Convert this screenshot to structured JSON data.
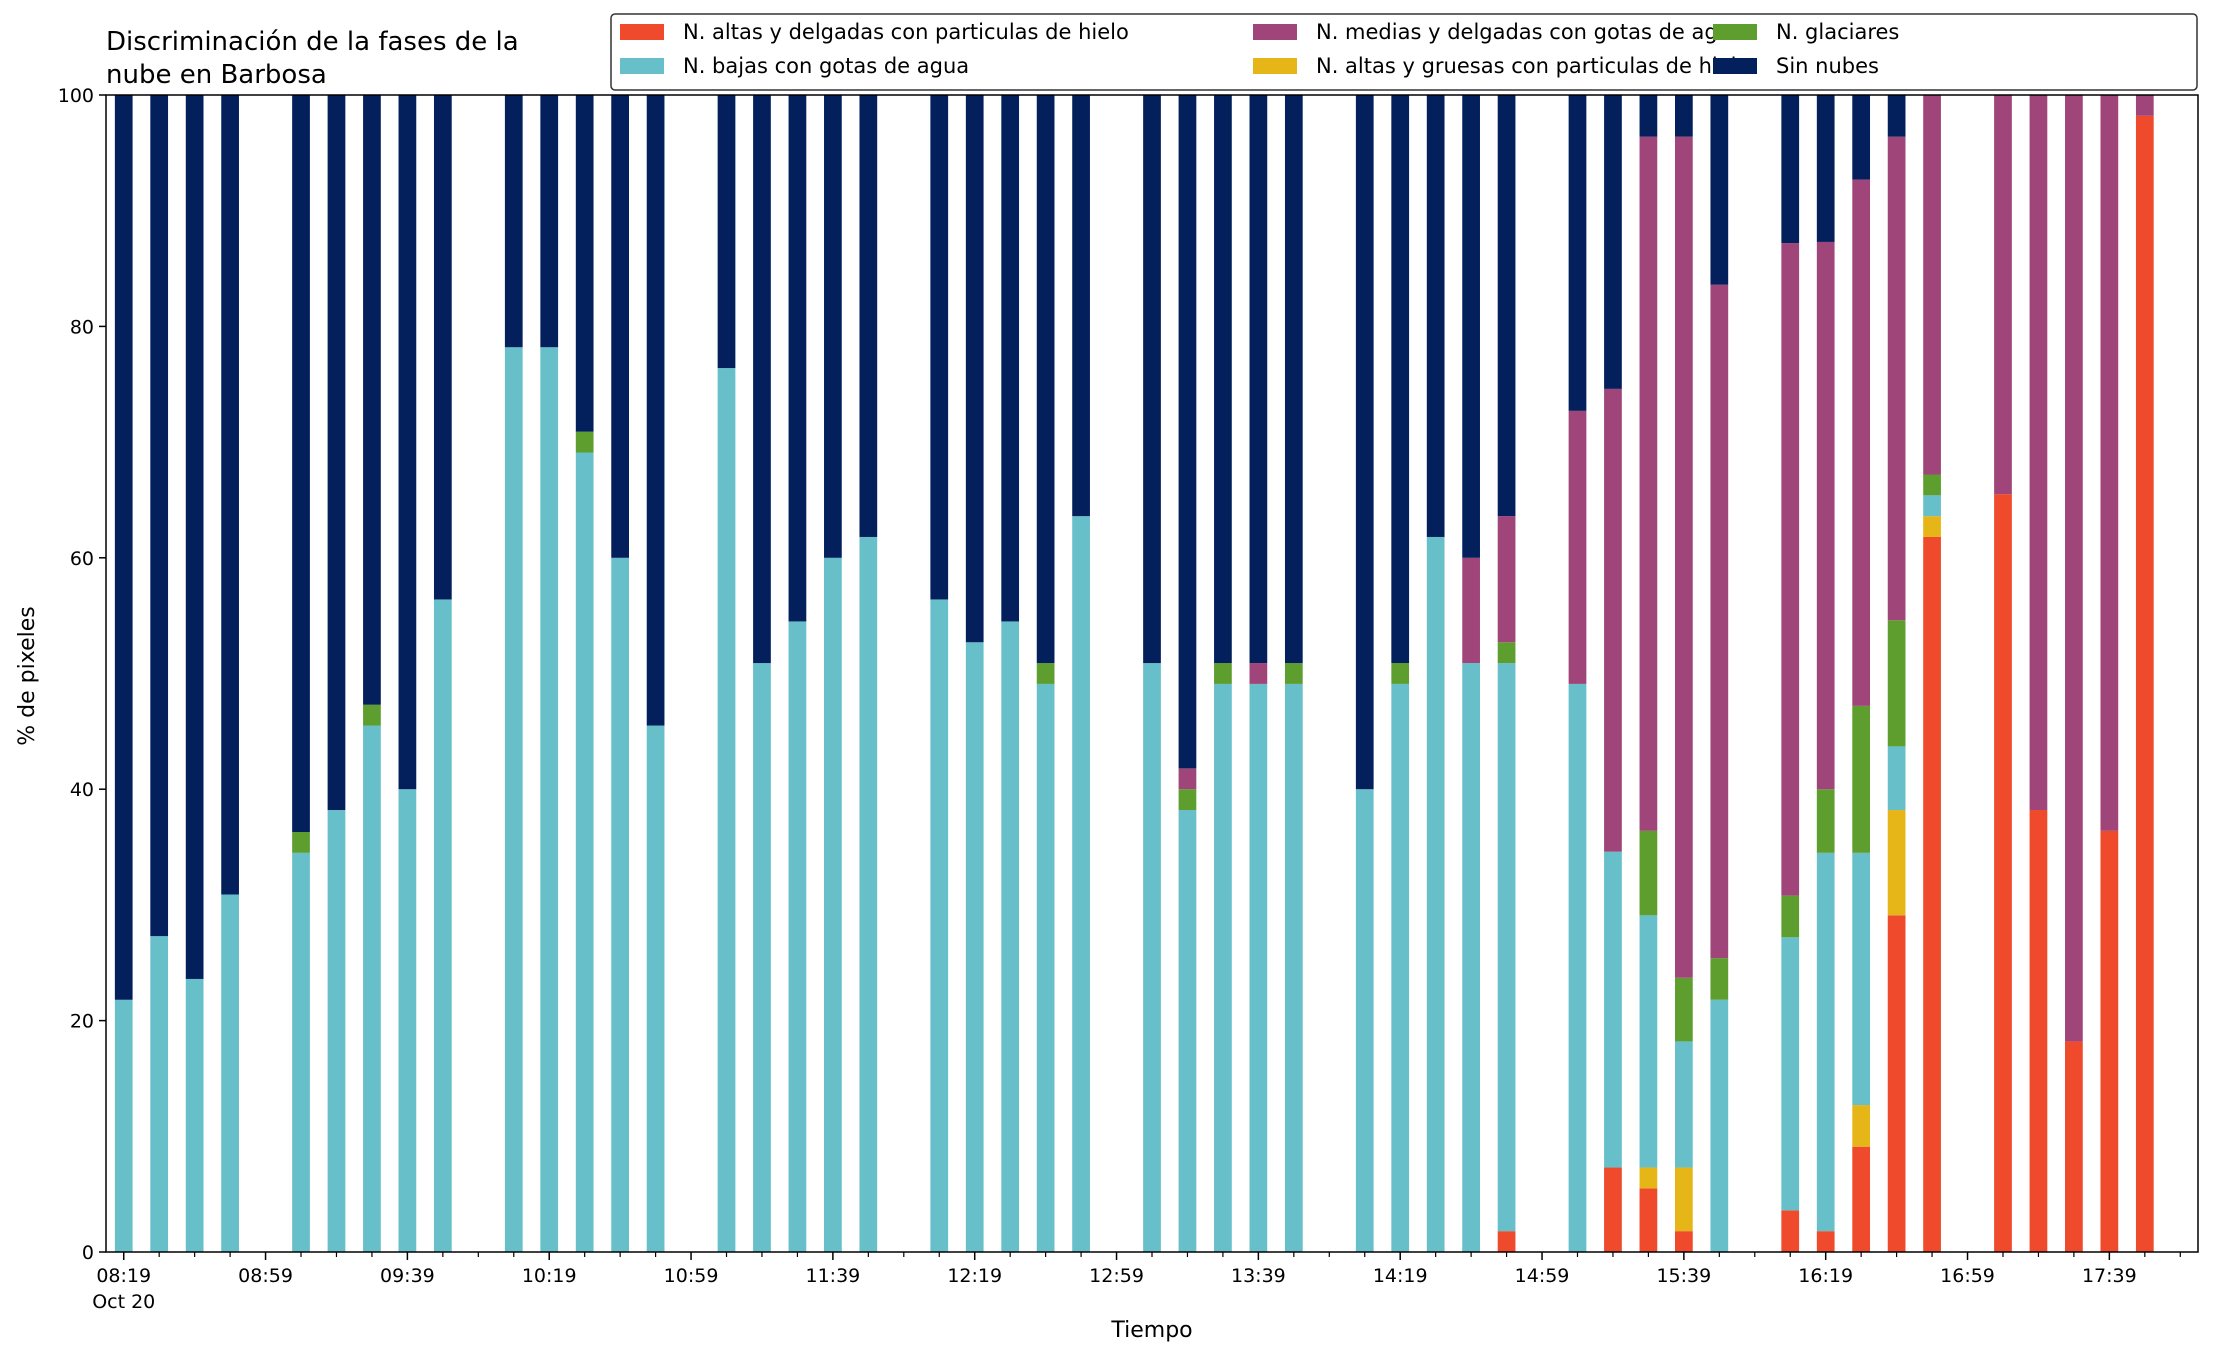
{
  "chart_data": {
    "type": "bar",
    "stacked": true,
    "title_lines": [
      "Discriminación de la fases de la",
      "nube en Barbosa"
    ],
    "xlabel": "Tiempo",
    "ylabel": "% de pixeles",
    "ylim": [
      0,
      100
    ],
    "yticks": [
      0,
      20,
      40,
      60,
      80,
      100
    ],
    "x_start": "08:19",
    "x_step_minutes": 10,
    "x_slots": 59,
    "xtick_labels": [
      {
        "slot": 0,
        "text": "08:19",
        "sub": "Oct 20"
      },
      {
        "slot": 4,
        "text": "08:59"
      },
      {
        "slot": 8,
        "text": "09:39"
      },
      {
        "slot": 12,
        "text": "10:19"
      },
      {
        "slot": 16,
        "text": "10:59"
      },
      {
        "slot": 20,
        "text": "11:39"
      },
      {
        "slot": 24,
        "text": "12:19"
      },
      {
        "slot": 28,
        "text": "12:59"
      },
      {
        "slot": 32,
        "text": "13:39"
      },
      {
        "slot": 36,
        "text": "14:19"
      },
      {
        "slot": 40,
        "text": "14:59"
      },
      {
        "slot": 44,
        "text": "15:39"
      },
      {
        "slot": 48,
        "text": "16:19"
      },
      {
        "slot": 52,
        "text": "16:59"
      },
      {
        "slot": 56,
        "text": "17:39"
      }
    ],
    "grid": false,
    "legend_position": "top-right",
    "legend": [
      "N. altas y delgadas con particulas de hielo",
      "N. bajas con gotas de agua",
      "N. medias y delgadas con gotas de agua",
      "N. altas y gruesas con particulas de hielo",
      "N. glaciares",
      "Sin nubes"
    ],
    "series": [
      {
        "name": "N. altas y delgadas con particulas de hielo",
        "color": "#ee4a2b"
      },
      {
        "name": "N. altas y gruesas con particulas de hielo",
        "color": "#e6b619"
      },
      {
        "name": "N. bajas con gotas de agua",
        "color": "#67bfc9"
      },
      {
        "name": "N. glaciares",
        "color": "#5e9e2f"
      },
      {
        "name": "N. medias y delgadas con gotas de agua",
        "color": "#a0457a"
      },
      {
        "name": "Sin nubes",
        "color": "#03205c"
      }
    ],
    "bars": [
      {
        "slot": 0,
        "time": "08:19",
        "values": [
          0,
          0,
          21.8,
          0,
          0,
          78.2
        ]
      },
      {
        "slot": 1,
        "time": "08:29",
        "values": [
          0,
          0,
          27.3,
          0,
          0,
          72.7
        ]
      },
      {
        "slot": 2,
        "time": "08:39",
        "values": [
          0,
          0,
          23.6,
          0,
          0,
          76.4
        ]
      },
      {
        "slot": 3,
        "time": "08:49",
        "values": [
          0,
          0,
          30.9,
          0,
          0,
          69.1
        ]
      },
      {
        "slot": 5,
        "time": "09:09",
        "values": [
          0,
          0,
          34.5,
          1.8,
          0,
          63.7
        ]
      },
      {
        "slot": 6,
        "time": "09:19",
        "values": [
          0,
          0,
          38.2,
          0,
          0,
          61.8
        ]
      },
      {
        "slot": 7,
        "time": "09:29",
        "values": [
          0,
          0,
          45.5,
          1.8,
          0,
          52.7
        ]
      },
      {
        "slot": 8,
        "time": "09:39",
        "values": [
          0,
          0,
          40.0,
          0,
          0,
          60.0
        ]
      },
      {
        "slot": 9,
        "time": "09:49",
        "values": [
          0,
          0,
          56.4,
          0,
          0,
          43.6
        ]
      },
      {
        "slot": 11,
        "time": "10:09",
        "values": [
          0,
          0,
          78.2,
          0,
          0,
          21.8
        ]
      },
      {
        "slot": 12,
        "time": "10:19",
        "values": [
          0,
          0,
          78.2,
          0,
          0,
          21.8
        ]
      },
      {
        "slot": 13,
        "time": "10:29",
        "values": [
          0,
          0,
          69.1,
          1.8,
          0,
          29.1
        ]
      },
      {
        "slot": 14,
        "time": "10:39",
        "values": [
          0,
          0,
          60.0,
          0,
          0,
          40.0
        ]
      },
      {
        "slot": 15,
        "time": "10:49",
        "values": [
          0,
          0,
          45.5,
          0,
          0,
          54.5
        ]
      },
      {
        "slot": 17,
        "time": "11:09",
        "values": [
          0,
          0,
          76.4,
          0,
          0,
          23.6
        ]
      },
      {
        "slot": 18,
        "time": "11:19",
        "values": [
          0,
          0,
          50.9,
          0,
          0,
          49.1
        ]
      },
      {
        "slot": 19,
        "time": "11:29",
        "values": [
          0,
          0,
          54.5,
          0,
          0,
          45.5
        ]
      },
      {
        "slot": 20,
        "time": "11:39",
        "values": [
          0,
          0,
          60.0,
          0,
          0,
          40.0
        ]
      },
      {
        "slot": 21,
        "time": "11:49",
        "values": [
          0,
          0,
          61.8,
          0,
          0,
          38.2
        ]
      },
      {
        "slot": 23,
        "time": "12:09",
        "values": [
          0,
          0,
          56.4,
          0,
          0,
          43.6
        ]
      },
      {
        "slot": 24,
        "time": "12:19",
        "values": [
          0,
          0,
          52.7,
          0,
          0,
          47.3
        ]
      },
      {
        "slot": 25,
        "time": "12:29",
        "values": [
          0,
          0,
          54.5,
          0,
          0,
          45.5
        ]
      },
      {
        "slot": 26,
        "time": "12:39",
        "values": [
          0,
          0,
          49.1,
          1.8,
          0,
          49.1
        ]
      },
      {
        "slot": 27,
        "time": "12:49",
        "values": [
          0,
          0,
          63.6,
          0,
          0,
          36.4
        ]
      },
      {
        "slot": 29,
        "time": "13:09",
        "values": [
          0,
          0,
          50.9,
          0,
          0,
          49.1
        ]
      },
      {
        "slot": 30,
        "time": "13:19",
        "values": [
          0,
          0,
          38.2,
          1.8,
          1.8,
          58.2
        ]
      },
      {
        "slot": 31,
        "time": "13:29",
        "values": [
          0,
          0,
          49.1,
          1.8,
          0,
          49.1
        ]
      },
      {
        "slot": 32,
        "time": "13:39",
        "values": [
          0,
          0,
          49.1,
          0,
          1.8,
          49.1
        ]
      },
      {
        "slot": 33,
        "time": "13:49",
        "values": [
          0,
          0,
          49.1,
          1.8,
          0,
          49.1
        ]
      },
      {
        "slot": 35,
        "time": "14:09",
        "values": [
          0,
          0,
          40.0,
          0,
          0,
          60.0
        ]
      },
      {
        "slot": 36,
        "time": "14:19",
        "values": [
          0,
          0,
          49.1,
          1.8,
          0,
          49.1
        ]
      },
      {
        "slot": 37,
        "time": "14:29",
        "values": [
          0,
          0,
          61.8,
          0,
          0,
          38.2
        ]
      },
      {
        "slot": 38,
        "time": "14:39",
        "values": [
          0,
          0,
          50.9,
          0,
          9.1,
          40.0
        ]
      },
      {
        "slot": 39,
        "time": "14:49",
        "values": [
          1.8,
          0,
          49.1,
          1.8,
          10.9,
          36.4
        ]
      },
      {
        "slot": 41,
        "time": "15:09",
        "values": [
          0,
          0,
          49.1,
          0,
          23.6,
          27.3
        ]
      },
      {
        "slot": 42,
        "time": "15:19",
        "values": [
          7.3,
          0,
          27.3,
          0,
          40.0,
          25.4
        ]
      },
      {
        "slot": 43,
        "time": "15:29",
        "values": [
          5.5,
          1.8,
          21.8,
          7.3,
          60.0,
          3.6
        ]
      },
      {
        "slot": 44,
        "time": "15:39",
        "values": [
          1.8,
          5.5,
          10.9,
          5.5,
          72.7,
          3.6
        ]
      },
      {
        "slot": 45,
        "time": "15:49",
        "values": [
          0,
          0,
          21.8,
          3.6,
          58.2,
          16.4
        ]
      },
      {
        "slot": 47,
        "time": "16:09",
        "values": [
          3.6,
          0,
          23.6,
          3.6,
          56.4,
          12.8
        ]
      },
      {
        "slot": 48,
        "time": "16:19",
        "values": [
          1.8,
          0,
          32.7,
          5.5,
          47.3,
          12.7
        ]
      },
      {
        "slot": 49,
        "time": "16:29",
        "values": [
          9.1,
          3.6,
          21.8,
          12.7,
          45.5,
          7.3
        ]
      },
      {
        "slot": 50,
        "time": "16:39",
        "values": [
          29.1,
          9.1,
          5.5,
          10.9,
          41.8,
          3.6
        ]
      },
      {
        "slot": 51,
        "time": "16:49",
        "values": [
          61.8,
          1.8,
          1.8,
          1.8,
          32.8,
          0
        ]
      },
      {
        "slot": 53,
        "time": "17:09",
        "values": [
          65.5,
          0,
          0,
          0,
          34.5,
          0
        ]
      },
      {
        "slot": 54,
        "time": "17:19",
        "values": [
          38.2,
          0,
          0,
          0,
          61.8,
          0
        ]
      },
      {
        "slot": 55,
        "time": "17:29",
        "values": [
          18.2,
          0,
          0,
          0,
          81.8,
          0
        ]
      },
      {
        "slot": 56,
        "time": "17:39",
        "values": [
          36.4,
          0,
          0,
          0,
          63.6,
          0
        ]
      },
      {
        "slot": 57,
        "time": "17:49",
        "values": [
          98.2,
          0,
          0,
          0,
          1.8,
          0
        ]
      }
    ]
  }
}
